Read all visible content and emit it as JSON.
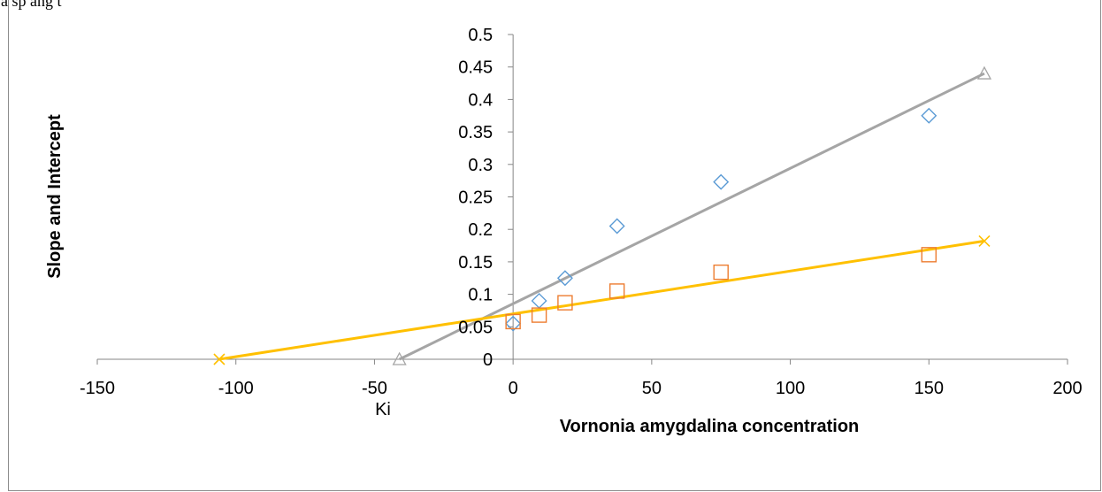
{
  "top_fragment": "a sp ang t",
  "chart_data": {
    "type": "scatter",
    "title": "",
    "xlabel": "Vornonia amygdalina concentration",
    "ylabel": "Slope and Intercept",
    "xlim": [
      -150,
      200
    ],
    "ylim": [
      0,
      0.5
    ],
    "xticks": [
      -150,
      -100,
      -50,
      0,
      50,
      100,
      150,
      200
    ],
    "yticks": [
      0,
      0.05,
      0.1,
      0.15,
      0.2,
      0.25,
      0.3,
      0.35,
      0.4,
      0.45,
      0.5
    ],
    "xtick_labels": [
      "-150",
      "-100",
      "-50",
      "0",
      "50",
      "100",
      "150",
      "200"
    ],
    "ytick_labels": [
      "0",
      "0.05",
      "0.1",
      "0.15",
      "0.2",
      "0.25",
      "0.3",
      "0.35",
      "0.4",
      "0.45",
      "0.5"
    ],
    "annotation": "Ki",
    "legend": "none",
    "grid": false,
    "series": [
      {
        "marker": "diamond",
        "color": "#5b9bd5",
        "x": [
          0,
          9.4,
          18.75,
          37.5,
          75,
          150
        ],
        "y": [
          0.055,
          0.09,
          0.125,
          0.205,
          0.273,
          0.375
        ]
      },
      {
        "marker": "square",
        "color": "#ed7d31",
        "x": [
          0,
          9.4,
          18.75,
          37.5,
          75,
          150
        ],
        "y": [
          0.058,
          0.068,
          0.087,
          0.105,
          0.134,
          0.161
        ]
      },
      {
        "marker": "triangle",
        "color": "#a5a5a5",
        "line": true,
        "x": [
          -41,
          170
        ],
        "y": [
          0,
          0.44
        ]
      },
      {
        "marker": "x",
        "color": "#ffc000",
        "line": true,
        "x": [
          -106,
          170
        ],
        "y": [
          0,
          0.182
        ]
      }
    ]
  }
}
